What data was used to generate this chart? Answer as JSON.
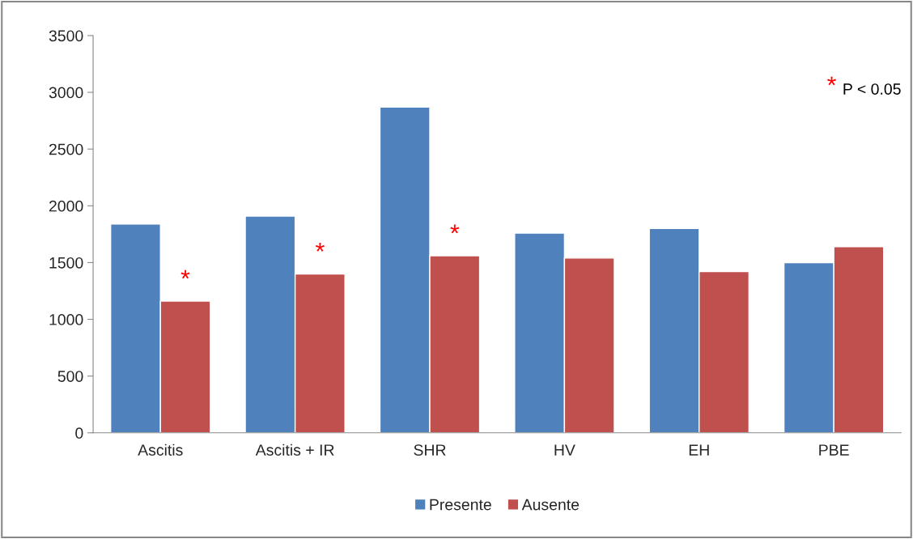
{
  "chart_data": {
    "type": "bar",
    "categories": [
      "Ascitis",
      "Ascitis + IR",
      "SHR",
      "HV",
      "EH",
      "PBE"
    ],
    "series": [
      {
        "name": "Presente",
        "color": "#4f81bd",
        "values": [
          1840,
          1910,
          2870,
          1760,
          1800,
          1500
        ]
      },
      {
        "name": "Ausente",
        "color": "#c0504d",
        "values": [
          1160,
          1400,
          1560,
          1540,
          1420,
          1640
        ]
      }
    ],
    "ylim": [
      0,
      3500
    ],
    "yticks": [
      0,
      500,
      1000,
      1500,
      2000,
      2500,
      3000,
      3500
    ],
    "annotations": [
      {
        "text": "*",
        "x": "Ascitis",
        "y": 1160
      },
      {
        "text": "*",
        "x": "Ascitis + IR",
        "y": 1400
      },
      {
        "text": "*",
        "x": "SHR",
        "y": 1560
      },
      "* P < 0.05"
    ],
    "grid": false,
    "legend": "bottom"
  }
}
